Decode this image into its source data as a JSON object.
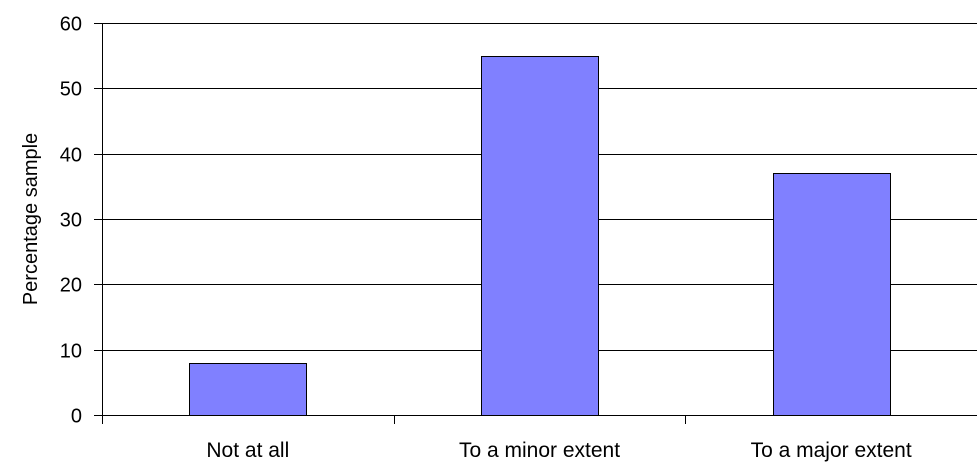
{
  "chart_data": {
    "type": "bar",
    "categories": [
      "Not at all",
      "To a minor extent",
      "To a major extent"
    ],
    "values": [
      8,
      55,
      37
    ],
    "title": "",
    "xlabel": "",
    "ylabel": "Percentage sample",
    "ylim": [
      0,
      60
    ],
    "yticks": [
      "0",
      "10",
      "20",
      "30",
      "40",
      "50",
      "60"
    ],
    "grid": "horizontal",
    "legend": "none",
    "colors": {
      "bar_fill": "#8080ff",
      "bar_stroke": "#000000",
      "grid": "#000000",
      "axis": "#000000",
      "background": "#ffffff"
    }
  }
}
